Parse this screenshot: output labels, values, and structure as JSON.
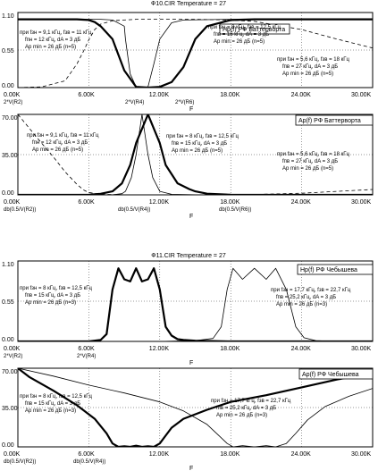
{
  "charts": [
    {
      "header": "Ф10.CIR Temperature = 27",
      "legend_box": "Hр(f)  РФ Баттерворта",
      "yticks": [
        "1.10",
        "0.55",
        "0.00"
      ],
      "xticks": [
        "0.00K",
        "6.00K",
        "12.00K",
        "18.00K",
        "24.00K",
        "30.00K"
      ],
      "xlabel": "F",
      "trace_labels": [
        "2*V(R2)",
        "2*V(R4)",
        "2*V(R6)"
      ],
      "annotations": [
        {
          "lines": [
            "при  fзн = 9,1 кГц,  fзв = 11 кГц",
            "fпн = 12 кГц,  dA = 3 дБ",
            "Ap min = 26 дБ  (n=5)"
          ]
        },
        {
          "lines": [
            "при  fзн = 8 кГц,  fзв = 12,5 кГц",
            "fпв = 15 кГц,  dA = 3 дБ",
            "Ap min = 26 дБ  (n=5)"
          ]
        },
        {
          "lines": [
            "при  fзн = 5,6 кГц,  fзв = 18 кГц",
            "fпв = 27 кГц,  dA = 3 дБ",
            "Ap min = 26 дБ  (n=5)"
          ]
        }
      ]
    },
    {
      "legend_box": "Ap(f)  РФ Баттерворта",
      "yticks": [
        "70.00",
        "35.00",
        "0.00"
      ],
      "xticks": [
        "0.00K",
        "6.00K",
        "12.00K",
        "18.00K",
        "24.00K",
        "30.00K"
      ],
      "xlabel": "F",
      "trace_labels": [
        "db(0.5/V(R2))",
        "db(0.5/V(R4))",
        "db(0.5/V(R6))"
      ],
      "annotations": [
        {
          "lines": [
            "при  fзн = 9,1 кГц,  fзв = 11 кГц",
            "fпн = 12 кГц,  dA = 3 дБ",
            "Ap min = 26 дБ  (n=5)"
          ]
        },
        {
          "lines": [
            "при  fзн = 8 кГц,  fзв = 12,5 кГц",
            "fпв = 15 кГц,  dA = 3 дБ",
            "Ap min = 26 дБ  (n=5)"
          ]
        },
        {
          "lines": [
            "при  fзн = 5,6 кГц,  fзв = 18 кГц",
            "fпв = 27 кГц,  dA = 3 дБ",
            "Ap min = 26 дБ  (n=5)"
          ]
        }
      ]
    },
    {
      "header": "Ф11.CIR Temperature = 27",
      "legend_box": "Hр(f)  РФ Чебышева",
      "yticks": [
        "1.10",
        "0.55",
        "0.00"
      ],
      "xticks": [
        "0.00K",
        "6.00K",
        "12.00K",
        "18.00K",
        "24.00K",
        "30.00K"
      ],
      "xlabel": "F",
      "trace_labels": [
        "2*V(R2)",
        "2*V(R4)"
      ],
      "annotations": [
        {
          "lines": [
            "при  fзн = 8 кГц,  fзв = 12,5 кГц",
            "fпв = 15 кГц,  dA = 3 дБ",
            "Ap min = 26 дБ  (n=3)"
          ]
        },
        {
          "lines": [
            "при  fзн = 17,7 кГц,  fзв = 22,7 кГц",
            "fпв = 25,2 кГц,  dA = 3 дБ",
            "Ap min = 26 дБ  (n=3)"
          ]
        }
      ]
    },
    {
      "legend_box": "Ap(f)  РФ Чебышева",
      "yticks": [
        "70.00",
        "35.00",
        "0.00"
      ],
      "xticks": [
        "0.00K",
        "6.00K",
        "12.00K",
        "18.00K",
        "24.00K",
        "30.00K"
      ],
      "xlabel": "F",
      "trace_labels": [
        "db(0.5/V(R2))",
        "db(0.5/V(R4))"
      ],
      "annotations": [
        {
          "lines": [
            "при  fзн = 8 кГц,  fзв = 12,5 кГц",
            "fпв = 15 кГц,  dA = 3 дБ",
            "Ap min = 26 дБ  (n=3)"
          ]
        },
        {
          "lines": [
            "при  fзн = 17,7 кГц,  fзв = 22,7 кГц",
            "fпв = 25,2 кГц,  dA = 3 дБ",
            "Ap min = 26 дБ  (n=3)"
          ]
        }
      ]
    }
  ],
  "chart_data": [
    {
      "type": "line",
      "xlabel": "F",
      "ylabel": "",
      "xlim": [
        0,
        30000
      ],
      "ylim": [
        0,
        1.1
      ],
      "series": [
        {
          "name": "2*V(R2)",
          "style": "dashed",
          "x": [
            0,
            2000,
            4000,
            5000,
            5600,
            6000,
            6500,
            7000,
            8000,
            10000,
            12000,
            15000,
            18000,
            20000,
            24000,
            27000,
            30000
          ],
          "y": [
            0.0,
            0.01,
            0.1,
            0.35,
            0.55,
            0.7,
            0.85,
            0.93,
            0.98,
            1.0,
            1.0,
            1.0,
            0.99,
            0.97,
            0.85,
            0.71,
            0.58
          ]
        },
        {
          "name": "2*V(R4)",
          "style": "thick",
          "x": [
            0,
            5000,
            6000,
            6500,
            7000,
            8000,
            9000,
            10000,
            11000,
            12000,
            13000,
            14000,
            15000,
            16000,
            18000,
            20000,
            24000,
            30000
          ],
          "y": [
            1.0,
            1.0,
            0.99,
            0.96,
            0.9,
            0.71,
            0.25,
            0.01,
            0.0,
            0.01,
            0.08,
            0.3,
            0.71,
            0.9,
            0.99,
            1.0,
            1.0,
            1.0
          ]
        },
        {
          "name": "2*V(R6)",
          "style": "thin",
          "x": [
            0,
            7000,
            8000,
            9000,
            9100,
            9500,
            10000,
            10500,
            11000,
            11500,
            12000,
            13000,
            14000,
            18000,
            24000,
            30000
          ],
          "y": [
            1.0,
            1.0,
            0.99,
            0.9,
            0.71,
            0.2,
            0.01,
            0.0,
            0.01,
            0.35,
            0.71,
            0.95,
            0.99,
            1.0,
            1.0,
            1.0
          ]
        }
      ]
    },
    {
      "type": "line",
      "xlabel": "F",
      "ylabel": "",
      "xlim": [
        0,
        30000
      ],
      "ylim": [
        0,
        70
      ],
      "series": [
        {
          "name": "db(0.5/V(R2))",
          "style": "dashed",
          "x": [
            0,
            2000,
            3000,
            4000,
            5000,
            5600,
            6000,
            7000,
            8000,
            10000,
            12000,
            15000,
            18000,
            20000,
            24000,
            27000,
            30000
          ],
          "y": [
            70,
            45,
            33,
            20,
            9,
            4,
            2,
            0.5,
            0.2,
            0,
            0,
            0,
            0.1,
            0.3,
            1.4,
            3,
            4.7
          ]
        },
        {
          "name": "db(0.5/V(R4))",
          "style": "thick",
          "x": [
            0,
            3000,
            5000,
            6000,
            7000,
            8000,
            8800,
            9500,
            10000,
            11000,
            12000,
            12500,
            13500,
            14500,
            15000,
            16000,
            18000,
            24000,
            30000
          ],
          "y": [
            0,
            0,
            0,
            0.1,
            0.9,
            3,
            10,
            26,
            45,
            70,
            45,
            26,
            10,
            5,
            3,
            1,
            0.1,
            0,
            0
          ]
        },
        {
          "name": "db(0.5/V(R6))",
          "style": "thin",
          "x": [
            0,
            6000,
            8000,
            8800,
            9100,
            9600,
            10000,
            10500,
            11000,
            11400,
            12000,
            13000,
            15000,
            20000,
            30000
          ],
          "y": [
            0,
            0,
            0.1,
            1,
            3,
            15,
            35,
            70,
            35,
            15,
            3,
            0.5,
            0.1,
            0,
            0
          ]
        }
      ]
    },
    {
      "type": "line",
      "xlabel": "F",
      "ylabel": "",
      "xlim": [
        0,
        30000
      ],
      "ylim": [
        0,
        1.1
      ],
      "series": [
        {
          "name": "2*V(R2)",
          "style": "thick",
          "x": [
            0,
            6000,
            7000,
            7500,
            8000,
            8500,
            9000,
            9500,
            10000,
            10500,
            11000,
            11500,
            12000,
            12500,
            13000,
            13500,
            14000,
            15000,
            18000,
            30000
          ],
          "y": [
            0,
            0,
            0.02,
            0.1,
            0.71,
            1.0,
            0.85,
            0.82,
            1.0,
            0.82,
            0.85,
            1.0,
            0.71,
            0.2,
            0.08,
            0.03,
            0.02,
            0.01,
            0,
            0
          ]
        },
        {
          "name": "2*V(R4)",
          "style": "thin",
          "x": [
            0,
            12000,
            15000,
            16500,
            17200,
            17700,
            18200,
            19000,
            20000,
            21000,
            21800,
            22700,
            23500,
            24200,
            25200,
            27000,
            30000
          ],
          "y": [
            0,
            0,
            0.01,
            0.04,
            0.2,
            0.71,
            1.0,
            0.85,
            1.0,
            0.85,
            1.0,
            0.71,
            0.2,
            0.05,
            0.01,
            0,
            0
          ]
        }
      ]
    },
    {
      "type": "line",
      "xlabel": "F",
      "ylabel": "",
      "xlim": [
        0,
        30000
      ],
      "ylim": [
        0,
        70
      ],
      "series": [
        {
          "name": "db(0.5/V(R2))",
          "style": "thick",
          "x": [
            0,
            1000,
            3000,
            5000,
            6500,
            7500,
            8000,
            8500,
            9000,
            9500,
            10000,
            10500,
            11000,
            11500,
            12000,
            12500,
            13000,
            14000,
            16000,
            18000,
            21000,
            24000,
            27000,
            30000
          ],
          "y": [
            70,
            62,
            50,
            37,
            25,
            12,
            3,
            0,
            0.5,
            0,
            1,
            0,
            0.5,
            0,
            3,
            10,
            17,
            25,
            33,
            40,
            46,
            53,
            60,
            66
          ]
        },
        {
          "name": "db(0.5/V(R4))",
          "style": "thin",
          "x": [
            0,
            3000,
            6000,
            9000,
            12000,
            14000,
            16000,
            17000,
            17700,
            18200,
            19000,
            20000,
            21000,
            21800,
            22700,
            23500,
            24500,
            26000,
            28000,
            30000
          ],
          "y": [
            70,
            63,
            55,
            48,
            40,
            32,
            20,
            10,
            3,
            0,
            1,
            0,
            1,
            0,
            3,
            12,
            24,
            36,
            45,
            52
          ]
        }
      ]
    }
  ]
}
